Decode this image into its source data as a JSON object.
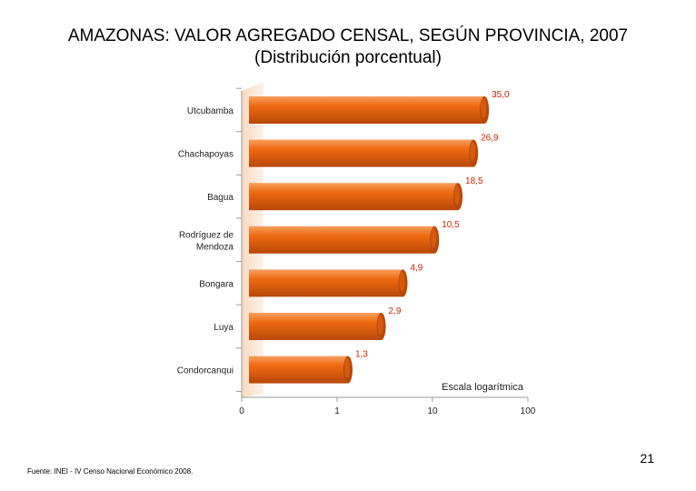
{
  "slide": {
    "title_line1": "AMAZONAS: VALOR AGREGADO CENSAL, SEGÚN PROVINCIA,  2007",
    "title_line2": "(Distribución porcentual)",
    "page_number": "21",
    "source": "Fuente: INEI - IV Censo Nacional Económico 2008."
  },
  "colors": {
    "bar": "#ee6a10",
    "bar_highlight": "#f7a060",
    "bar_dark": "#b8480a",
    "label": "#cc2200",
    "axis": "#999999",
    "wall": "#f7d7bd"
  },
  "chart_data": {
    "type": "bar",
    "orientation": "horizontal",
    "scale": "log",
    "categories": [
      [
        "Utcubamba"
      ],
      [
        "Chachapoyas"
      ],
      [
        "Bagua"
      ],
      [
        "Rodríguez de",
        "Mendoza"
      ],
      [
        "Bongara"
      ],
      [
        "Luya"
      ],
      [
        "Condorcanqui"
      ]
    ],
    "values": [
      35.0,
      26.9,
      18.5,
      10.5,
      4.9,
      2.9,
      1.3
    ],
    "value_labels": [
      "35,0",
      "26,9",
      "18,5",
      "10,5",
      "4,9",
      "2,9",
      "1,3"
    ],
    "x_ticks": [
      {
        "value": 0,
        "label": "0"
      },
      {
        "value": 1,
        "label": "1"
      },
      {
        "value": 10,
        "label": "10"
      },
      {
        "value": 100,
        "label": "100"
      }
    ],
    "annotation": "Escala logarítmica",
    "xlim": [
      0,
      100
    ]
  }
}
